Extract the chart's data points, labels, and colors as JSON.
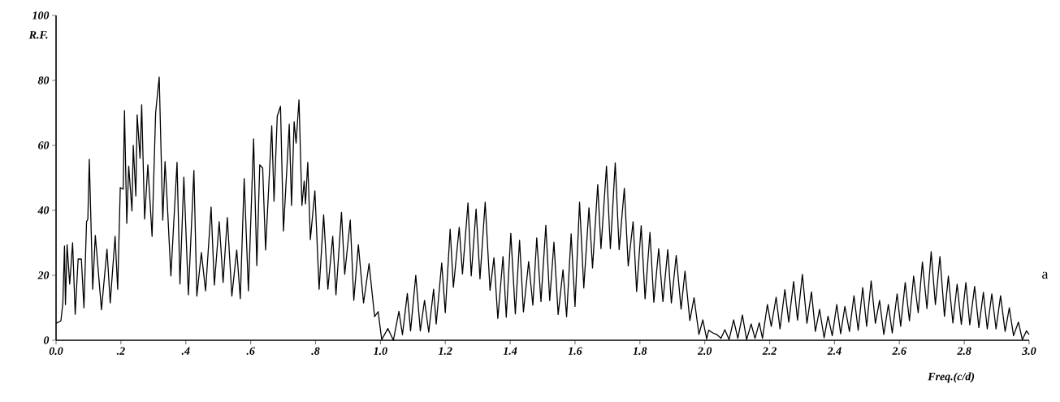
{
  "chart_data": {
    "type": "line",
    "xlabel": "Freq.(c/d)",
    "ylabel": "R.F.",
    "annotations": [
      "a"
    ],
    "xlim": [
      0,
      3.0
    ],
    "ylim": [
      0,
      100
    ],
    "xticks": [
      {
        "value": 0,
        "label": "0.0"
      },
      {
        "value": 0.2,
        "label": ".2"
      },
      {
        "value": 0.4,
        "label": ".4"
      },
      {
        "value": 0.6,
        "label": ".6"
      },
      {
        "value": 0.8,
        "label": ".8"
      },
      {
        "value": 1.0,
        "label": "1.0"
      },
      1.2,
      1.4,
      1.6,
      1.8,
      {
        "value": 2.0,
        "label": "2.0"
      },
      2.2,
      2.4,
      2.6,
      2.8,
      {
        "value": 3.0,
        "label": "3.0"
      }
    ],
    "yticks": [
      0,
      20,
      40,
      60,
      80,
      100
    ],
    "series": [
      {
        "color": "#000000",
        "x": [
          0,
          0.015,
          0.021,
          0.026,
          0.029,
          0.034,
          0.042,
          0.051,
          0.059,
          0.068,
          0.078,
          0.086,
          0.094,
          0.098,
          0.1025,
          0.113,
          0.121,
          0.128,
          0.14,
          0.157,
          0.167,
          0.182,
          0.19,
          0.198,
          0.207,
          0.211,
          0.218,
          0.224,
          0.234,
          0.238,
          0.246,
          0.25,
          0.259,
          0.264,
          0.273,
          0.283,
          0.296,
          0.307,
          0.318,
          0.329,
          0.336,
          0.343,
          0.354,
          0.373,
          0.382,
          0.394,
          0.408,
          0.425,
          0.434,
          0.448,
          0.461,
          0.478,
          0.488,
          0.503,
          0.515,
          0.528,
          0.542,
          0.557,
          0.568,
          0.58,
          0.593,
          0.609,
          0.619,
          0.628,
          0.637,
          0.646,
          0.665,
          0.672,
          0.682,
          0.692,
          0.701,
          0.719,
          0.726,
          0.734,
          0.74,
          0.749,
          0.758,
          0.765,
          0.769,
          0.776,
          0.784,
          0.798,
          0.811,
          0.825,
          0.838,
          0.853,
          0.863,
          0.88,
          0.89,
          0.907,
          0.918,
          0.932,
          0.948,
          0.965,
          0.982,
          0.993,
          1.004,
          1.023,
          1.04,
          1.057,
          1.068,
          1.083,
          1.093,
          1.109,
          1.123,
          1.136,
          1.149,
          1.164,
          1.172,
          1.189,
          1.2,
          1.215,
          1.225,
          1.243,
          1.253,
          1.27,
          1.28,
          1.295,
          1.307,
          1.323,
          1.338,
          1.35,
          1.362,
          1.378,
          1.388,
          1.402,
          1.416,
          1.429,
          1.441,
          1.457,
          1.47,
          1.482,
          1.495,
          1.51,
          1.522,
          1.535,
          1.548,
          1.563,
          1.574,
          1.588,
          1.6,
          1.614,
          1.627,
          1.643,
          1.654,
          1.67,
          1.68,
          1.697,
          1.709,
          1.724,
          1.736,
          1.752,
          1.764,
          1.779,
          1.79,
          1.804,
          1.816,
          1.831,
          1.843,
          1.858,
          1.871,
          1.886,
          1.897,
          1.912,
          1.927,
          1.939,
          1.954,
          1.967,
          1.982,
          1.994,
          2.006,
          2.012,
          2.025,
          2.037,
          2.05,
          2.062,
          2.075,
          2.089,
          2.102,
          2.116,
          2.129,
          2.143,
          2.155,
          2.168,
          2.178,
          2.193,
          2.205,
          2.22,
          2.232,
          2.247,
          2.259,
          2.274,
          2.286,
          2.301,
          2.315,
          2.329,
          2.341,
          2.354,
          2.368,
          2.38,
          2.393,
          2.407,
          2.419,
          2.432,
          2.446,
          2.46,
          2.473,
          2.487,
          2.499,
          2.513,
          2.526,
          2.539,
          2.552,
          2.566,
          2.578,
          2.593,
          2.604,
          2.618,
          2.631,
          2.644,
          2.658,
          2.671,
          2.685,
          2.698,
          2.711,
          2.725,
          2.739,
          2.751,
          2.765,
          2.778,
          2.791,
          2.805,
          2.817,
          2.832,
          2.845,
          2.859,
          2.871,
          2.885,
          2.898,
          2.912,
          2.926,
          2.939,
          2.952,
          2.967,
          2.979,
          2.992,
          3.0
        ],
        "values": [
          5.2,
          6,
          11.5,
          29,
          11,
          29.4,
          17.3,
          30,
          8,
          25,
          25,
          10,
          36.5,
          37.3,
          55.7,
          15.7,
          32.3,
          24,
          9.4,
          28,
          11.5,
          32,
          15.7,
          47,
          46.5,
          70.7,
          36,
          53.6,
          39.8,
          60,
          44.4,
          69.4,
          56,
          72.5,
          37.3,
          54,
          32,
          70,
          81,
          37,
          55,
          42,
          19.8,
          54.8,
          17.3,
          50.2,
          14,
          52.3,
          13.6,
          27,
          15.2,
          41,
          17,
          36.5,
          17.8,
          37.8,
          13.6,
          27.8,
          12.8,
          49.8,
          15.2,
          62,
          23,
          54,
          53,
          27.8,
          66,
          42.8,
          69,
          72,
          33.6,
          66.5,
          41.5,
          67.3,
          60.7,
          74,
          41.5,
          49,
          42,
          54.8,
          31,
          46,
          15.7,
          38.6,
          15.7,
          32,
          14,
          39.4,
          20.3,
          37,
          12.3,
          29.4,
          11.5,
          23.6,
          7.3,
          8.8,
          0.2,
          3.6,
          0,
          8.9,
          1.7,
          14.4,
          2.9,
          20,
          2.9,
          12.3,
          2.5,
          15.7,
          5,
          23.8,
          8.5,
          34.2,
          16.3,
          34.8,
          20.4,
          42.3,
          19.8,
          40.4,
          18.9,
          42.5,
          15.4,
          25.4,
          6.7,
          25.8,
          7.1,
          32.9,
          8.1,
          30.8,
          8.75,
          24.2,
          10.8,
          31.5,
          11.9,
          35.4,
          12.25,
          30.2,
          7.9,
          21.7,
          7.25,
          32.75,
          10.4,
          42.5,
          16.1,
          40.8,
          22.25,
          47.9,
          28.2,
          53.6,
          28.2,
          54.6,
          27.9,
          46.8,
          22.9,
          36.5,
          15,
          35.25,
          12.75,
          33.2,
          11.7,
          28.2,
          11.9,
          27.9,
          11.5,
          26.1,
          9.6,
          21.25,
          6.1,
          13.1,
          1.8,
          6.25,
          0.4,
          3.1,
          2.25,
          1.8,
          0.6,
          3.25,
          0.2,
          6.25,
          0.6,
          7.8,
          0.2,
          5,
          0.6,
          5.4,
          0.6,
          11,
          4.3,
          13.25,
          3.5,
          15.6,
          5.6,
          18.1,
          6.2,
          20.3,
          5.2,
          14.9,
          2.7,
          9.5,
          0.75,
          7.4,
          1.4,
          11,
          2,
          10.4,
          2.7,
          13.7,
          3.1,
          16.2,
          4.3,
          18.3,
          5.2,
          12.25,
          1.8,
          11,
          2.25,
          14.3,
          4.3,
          17.8,
          6,
          19.75,
          8.5,
          24.1,
          9.75,
          27.25,
          11,
          25.8,
          7.4,
          19.75,
          5.3,
          17.25,
          4.9,
          17.8,
          4.75,
          16.6,
          3.9,
          14.75,
          3.5,
          14.3,
          3.5,
          13.7,
          2.7,
          10,
          1.4,
          5.6,
          0.2,
          2.9,
          1.8
        ]
      }
    ]
  }
}
